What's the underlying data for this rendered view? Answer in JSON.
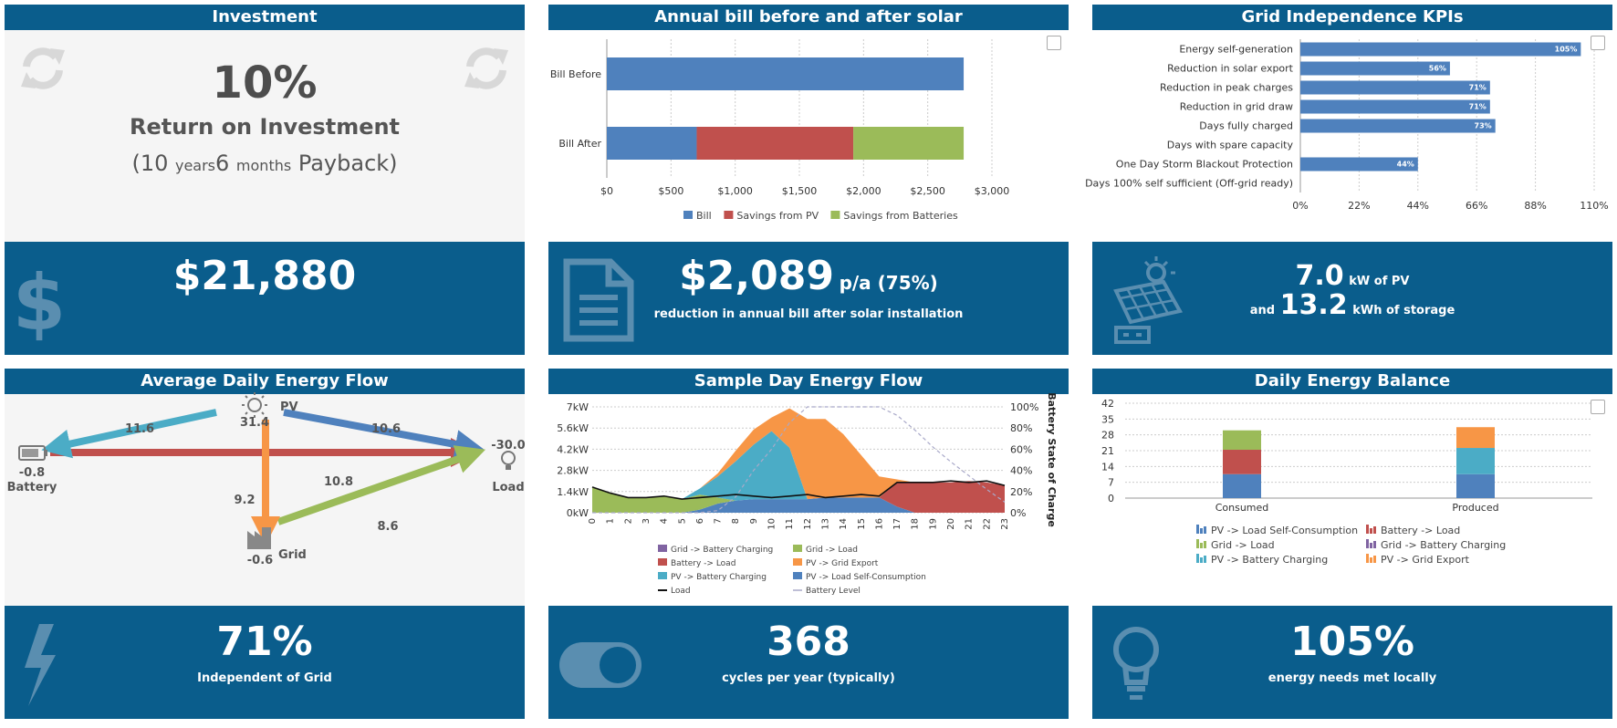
{
  "investment": {
    "title": "Investment",
    "roi_value": "10%",
    "roi_label": "Return on Investment",
    "payback_open": "(10 ",
    "payback_years_unit": "years",
    "payback_months": "6 ",
    "payback_months_unit": "months",
    "payback_close": " Payback)",
    "amount": "$21,880",
    "icons": {
      "refresh": "refresh-icon",
      "dollar": "dollar-icon"
    }
  },
  "bill": {
    "title": "Annual bill before and after solar",
    "saving": "$2,089",
    "saving_suffix": "p/a (75%)",
    "saving_label": "reduction in annual bill after solar installation",
    "icons": {
      "document": "document-icon"
    }
  },
  "kpi": {
    "title": "Grid Independence KPIs",
    "pv_value": "7.0",
    "pv_unit": "kW of PV",
    "storage_prefix": "and",
    "storage_value": "13.2",
    "storage_unit": "kWh of storage",
    "icons": {
      "solar": "solar-panel-icon"
    }
  },
  "flow": {
    "title": "Average Daily Energy Flow",
    "nodes": {
      "pv_label": "PV",
      "pv_value": "31.4",
      "battery_label": "Battery",
      "battery_value": "-0.8",
      "grid_label": "Grid",
      "grid_value": "-0.6",
      "load_label": "Load",
      "load_value": "-30.0"
    },
    "edges": {
      "pv_battery": "11.6",
      "pv_load": "10.6",
      "battery_load": "10.8",
      "pv_grid": "9.2",
      "grid_load": "8.6"
    },
    "independence": "71%",
    "independence_label": "Independent of Grid",
    "colors": {
      "pv_battery": "#4bacc6",
      "pv_load": "#4f81bd",
      "battery_load": "#c0504d",
      "pv_grid": "#f79646",
      "grid_load": "#9bbb59"
    }
  },
  "sample": {
    "title": "Sample Day Energy Flow",
    "cycles": "368",
    "cycles_label": "cycles per year (typically)"
  },
  "balance": {
    "title": "Daily Energy Balance",
    "met": "105%",
    "met_label": "energy needs met locally"
  },
  "chart_data": [
    {
      "type": "bar",
      "orientation": "horizontal",
      "stacked": true,
      "categories": [
        "Bill Before",
        "Bill After"
      ],
      "series": [
        {
          "name": "Bill",
          "values": [
            2780,
            700
          ],
          "color": "#4f81bd"
        },
        {
          "name": "Savings from PV",
          "values": [
            0,
            1220
          ],
          "color": "#c0504d"
        },
        {
          "name": "Savings from Batteries",
          "values": [
            0,
            860
          ],
          "color": "#9bbb59"
        }
      ],
      "xlim": [
        0,
        3000
      ],
      "xticks": [
        "$0",
        "$500",
        "$1,000",
        "$1,500",
        "$2,000",
        "$2,500",
        "$3,000"
      ],
      "legend": "bottom"
    },
    {
      "type": "bar",
      "orientation": "horizontal",
      "categories": [
        "Energy self-generation",
        "Reduction in solar export",
        "Reduction in peak charges",
        "Reduction in grid draw",
        "Days fully charged",
        "Days with spare capacity",
        "One Day Storm Blackout Protection",
        "Days 100% self sufficient (Off-grid ready)"
      ],
      "values": [
        105,
        56,
        71,
        71,
        73,
        0,
        44,
        0
      ],
      "labels": [
        "105%",
        "56%",
        "71%",
        "71%",
        "73%",
        "",
        "44%",
        ""
      ],
      "xlim": [
        0,
        110
      ],
      "xticks": [
        "0%",
        "22%",
        "44%",
        "66%",
        "88%",
        "110%"
      ],
      "color": "#4f81bd"
    },
    {
      "type": "area",
      "stacked": true,
      "x": [
        0,
        1,
        2,
        3,
        4,
        5,
        6,
        7,
        8,
        9,
        10,
        11,
        12,
        13,
        14,
        15,
        16,
        17,
        18,
        19,
        20,
        21,
        22,
        23
      ],
      "series": [
        {
          "name": "PV -> Load Self-Consumption",
          "color": "#4f81bd",
          "values": [
            0,
            0,
            0,
            0,
            0,
            0,
            0.2,
            0.6,
            0.8,
            0.9,
            0.9,
            0.9,
            0.9,
            1.0,
            1.0,
            1.0,
            1.0,
            0.4,
            0,
            0,
            0,
            0,
            0,
            0
          ]
        },
        {
          "name": "Battery -> Load",
          "color": "#c0504d",
          "values": [
            0,
            0,
            0,
            0,
            0,
            0,
            0,
            0,
            0,
            0,
            0,
            0,
            0,
            0,
            0,
            0,
            0,
            1.6,
            2.0,
            2.0,
            2.0,
            2.1,
            2.0,
            1.8
          ]
        },
        {
          "name": "Grid -> Load",
          "color": "#9bbb59",
          "values": [
            1.7,
            1.3,
            1.0,
            1.0,
            1.1,
            0.9,
            1.0,
            0.4,
            0,
            0,
            0,
            0,
            0,
            0,
            0,
            0,
            0,
            0,
            0,
            0,
            0,
            0,
            0,
            0
          ]
        },
        {
          "name": "PV -> Battery Charging",
          "color": "#4bacc6",
          "values": [
            0,
            0,
            0,
            0,
            0,
            0,
            0.4,
            1.4,
            2.6,
            3.6,
            4.5,
            3.4,
            0,
            0,
            0,
            0,
            0,
            0,
            0,
            0,
            0,
            0,
            0,
            0
          ]
        },
        {
          "name": "PV -> Grid Export",
          "color": "#f79646",
          "values": [
            0,
            0,
            0,
            0,
            0,
            0,
            0,
            0.2,
            0.7,
            1.0,
            0.9,
            2.6,
            5.3,
            5.2,
            4.2,
            2.8,
            1.4,
            0.2,
            0,
            0,
            0,
            0,
            0,
            0
          ]
        },
        {
          "name": "Grid -> Battery Charging",
          "color": "#8064a2",
          "values": [
            0,
            0,
            0,
            0,
            0,
            0,
            0,
            0,
            0,
            0,
            0,
            0,
            0,
            0,
            0,
            0,
            0,
            0,
            0,
            0,
            0,
            0,
            0,
            0
          ]
        }
      ],
      "load": [
        1.7,
        1.3,
        1.0,
        1.0,
        1.1,
        0.9,
        1.0,
        1.1,
        1.2,
        1.1,
        1.0,
        1.1,
        1.2,
        1.0,
        1.1,
        1.2,
        1.1,
        2.0,
        2.0,
        2.0,
        2.1,
        2.0,
        2.1,
        1.8
      ],
      "battery_level": [
        0,
        0,
        0,
        0,
        0,
        0,
        0,
        2,
        15,
        40,
        60,
        85,
        100,
        100,
        100,
        100,
        100,
        92,
        78,
        62,
        48,
        35,
        22,
        10
      ],
      "ylim": [
        0,
        7
      ],
      "yticks": [
        "0kW",
        "1.4kW",
        "2.8kW",
        "4.2kW",
        "5.6kW",
        "7kW"
      ],
      "y2ticks": [
        "0%",
        "20%",
        "40%",
        "60%",
        "80%",
        "100%"
      ],
      "y2label": "Battery State of Charge",
      "legend_labels": [
        "Grid -> Battery Charging",
        "Grid -> Load",
        "Battery -> Load",
        "PV -> Grid Export",
        "PV -> Battery Charging",
        "PV -> Load Self-Consumption",
        "Load",
        "Battery Level"
      ],
      "legend": "bottom"
    },
    {
      "type": "bar",
      "stacked": true,
      "categories": [
        "Consumed",
        "Produced"
      ],
      "series": [
        {
          "name": "PV -> Load Self-Consumption",
          "color": "#4f81bd",
          "values": [
            10.6,
            10.6
          ]
        },
        {
          "name": "Battery -> Load",
          "color": "#c0504d",
          "values": [
            10.8,
            0
          ]
        },
        {
          "name": "Grid -> Load",
          "color": "#9bbb59",
          "values": [
            8.6,
            0
          ]
        },
        {
          "name": "Grid -> Battery Charging",
          "color": "#8064a2",
          "values": [
            0,
            0
          ]
        },
        {
          "name": "PV -> Battery Charging",
          "color": "#4bacc6",
          "values": [
            0,
            11.6
          ]
        },
        {
          "name": "PV -> Grid Export",
          "color": "#f79646",
          "values": [
            0,
            9.2
          ]
        }
      ],
      "ylim": [
        0,
        42
      ],
      "yticks": [
        "0",
        "7",
        "14",
        "21",
        "28",
        "35",
        "42"
      ],
      "legend": "bottom"
    }
  ]
}
